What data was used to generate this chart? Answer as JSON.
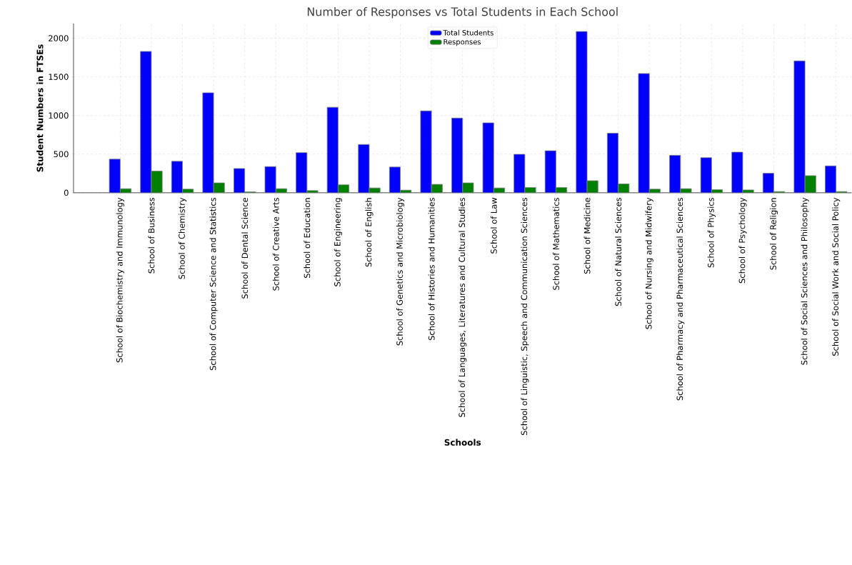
{
  "chart_data": {
    "type": "bar",
    "title": "Number of Responses vs Total Students in Each School",
    "xlabel": "Schools",
    "ylabel": "Student Numbers in FTSEs",
    "categories": [
      "School of Biochemistry and Immunology",
      "School of Business",
      "School of Chemistry",
      "School of Computer Science and Statistics",
      "School of Dental Science",
      "School of Creative Arts",
      "School of Education",
      "School of Engineering",
      "School of English",
      "School of Genetics and Microbiology",
      "School of Histories and Humanities",
      "School of Languages, Literatures and Cultural Studies",
      "School of Law",
      "School of Linguistic, Speech and Communication Sciences",
      "School of Mathematics",
      "School of Medicine",
      "School of Natural Sciences",
      "School of Nursing and Midwifery",
      "School of Pharmacy and Pharmaceutical Sciences",
      "School of Physics",
      "School of Psychology",
      "School of Religion",
      "School of Social Sciences and Philosophy",
      "School of Social Work and Social Policy"
    ],
    "series": [
      {
        "name": "Total Students",
        "color": "#0000ff",
        "values": [
          435,
          1829,
          407,
          1294,
          314,
          339,
          519,
          1107,
          625,
          333,
          1060,
          967,
          905,
          498,
          544,
          2087,
          771,
          1543,
          485,
          454,
          526,
          252,
          1707,
          348
        ]
      },
      {
        "name": "Responses",
        "color": "#008000",
        "values": [
          53,
          280,
          47,
          128,
          12,
          53,
          28,
          103,
          62,
          34,
          109,
          128,
          62,
          68,
          68,
          156,
          115,
          47,
          53,
          40,
          37,
          16,
          221,
          16
        ]
      }
    ],
    "ylim": [
      0,
      2190
    ],
    "yticks": [
      0,
      500,
      1000,
      1500,
      2000
    ],
    "grid": true,
    "legend": "top"
  }
}
